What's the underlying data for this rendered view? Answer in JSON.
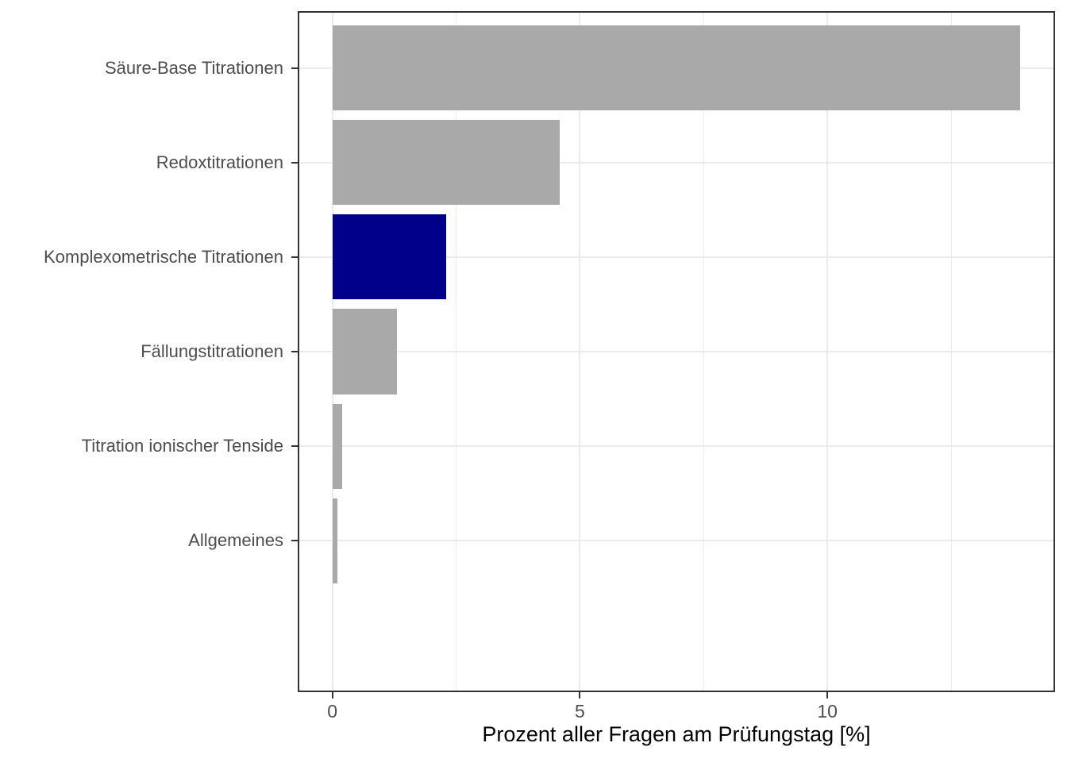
{
  "chart_data": {
    "type": "bar",
    "orientation": "horizontal",
    "title": "",
    "xlabel": "Prozent aller Fragen am Prüfungstag [%]",
    "ylabel": "",
    "categories": [
      "Säure-Base Titrationen",
      "Redoxtitrationen",
      "Komplexometrische Titrationen",
      "Fällungstitrationen",
      "Titration ionischer Tenside",
      "Allgemeines"
    ],
    "values": [
      13.9,
      4.6,
      2.3,
      1.3,
      0.2,
      0.1
    ],
    "bar_colors": [
      "#A9A9A9",
      "#A9A9A9",
      "#00008B",
      "#A9A9A9",
      "#A9A9A9",
      "#A9A9A9"
    ],
    "highlighted_category": "Komplexometrische Titrationen",
    "xlim": [
      -0.7,
      14.6
    ],
    "x_major_ticks": [
      0,
      5,
      10
    ],
    "x_tick_labels": [
      "0",
      "5",
      "10"
    ],
    "x_minor_ticks": [
      2.5,
      7.5,
      12.5
    ],
    "grid": "major-and-minor, light gray on white",
    "legend": false,
    "colors": {
      "bar_default": "#A9A9A9",
      "bar_highlight": "#00008B",
      "grid": "#EBEBEB",
      "panel_border": "#333333",
      "axis_text": "#4D4D4D",
      "axis_title": "#000000",
      "background": "#FFFFFF"
    }
  }
}
